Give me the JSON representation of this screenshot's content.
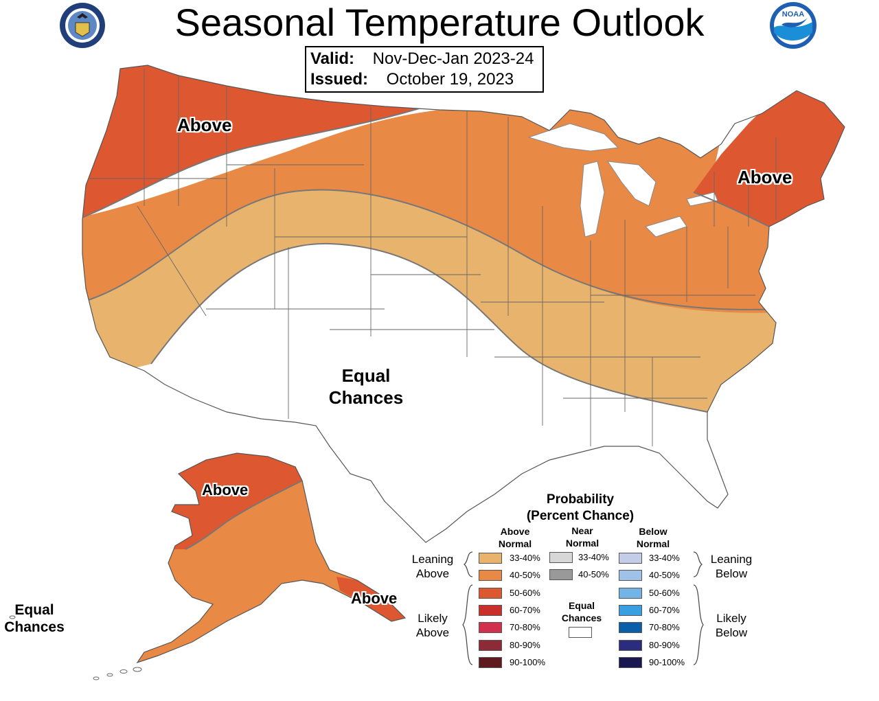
{
  "header": {
    "title": "Seasonal Temperature Outlook",
    "valid_label": "Valid:",
    "valid_value": "Nov-Dec-Jan 2023-24",
    "issued_label": "Issued:",
    "issued_value": "October 19, 2023"
  },
  "map_labels": {
    "northwest": "Above",
    "northeast": "Above",
    "center_line1": "Equal",
    "center_line2": "Chances",
    "alaska_north": "Above",
    "alaska_southeast": "Above",
    "aleutian_line1": "Equal",
    "aleutian_line2": "Chances"
  },
  "legend": {
    "title_line1": "Probability",
    "title_line2": "(Percent Chance)",
    "above_head_line1": "Above",
    "above_head_line2": "Normal",
    "near_head_line1": "Near",
    "near_head_line2": "Normal",
    "below_head_line1": "Below",
    "below_head_line2": "Normal",
    "above": [
      {
        "label": "33-40%",
        "color": "#e8b36c"
      },
      {
        "label": "40-50%",
        "color": "#e88a45"
      },
      {
        "label": "50-60%",
        "color": "#dd5730"
      },
      {
        "label": "60-70%",
        "color": "#c9302c"
      },
      {
        "label": "70-80%",
        "color": "#d1304f"
      },
      {
        "label": "80-90%",
        "color": "#8c2a38"
      },
      {
        "label": "90-100%",
        "color": "#5e1a1e"
      }
    ],
    "near": [
      {
        "label": "33-40%",
        "color": "#d7d7d7"
      },
      {
        "label": "40-50%",
        "color": "#999999"
      }
    ],
    "below": [
      {
        "label": "33-40%",
        "color": "#c3cde8"
      },
      {
        "label": "40-50%",
        "color": "#a0c2e8"
      },
      {
        "label": "50-60%",
        "color": "#73b4e6"
      },
      {
        "label": "60-70%",
        "color": "#3a9fe0"
      },
      {
        "label": "70-80%",
        "color": "#0b5ea8"
      },
      {
        "label": "80-90%",
        "color": "#2b2c7e"
      },
      {
        "label": "90-100%",
        "color": "#1a1650"
      }
    ],
    "equal_chances_line1": "Equal",
    "equal_chances_line2": "Chances",
    "leaning_above_line1": "Leaning",
    "leaning_above_line2": "Above",
    "likely_above_line1": "Likely",
    "likely_above_line2": "Above",
    "leaning_below_line1": "Leaning",
    "leaning_below_line2": "Below",
    "likely_below_line1": "Likely",
    "likely_below_line2": "Below"
  },
  "colors": {
    "above_50_60": "#dd5730",
    "above_40_50": "#e88a45",
    "above_33_40": "#e8b36c",
    "equal_chances": "#ffffff",
    "boundary": "#777777"
  },
  "icons": [
    "commerce-seal-icon",
    "noaa-logo-icon"
  ]
}
